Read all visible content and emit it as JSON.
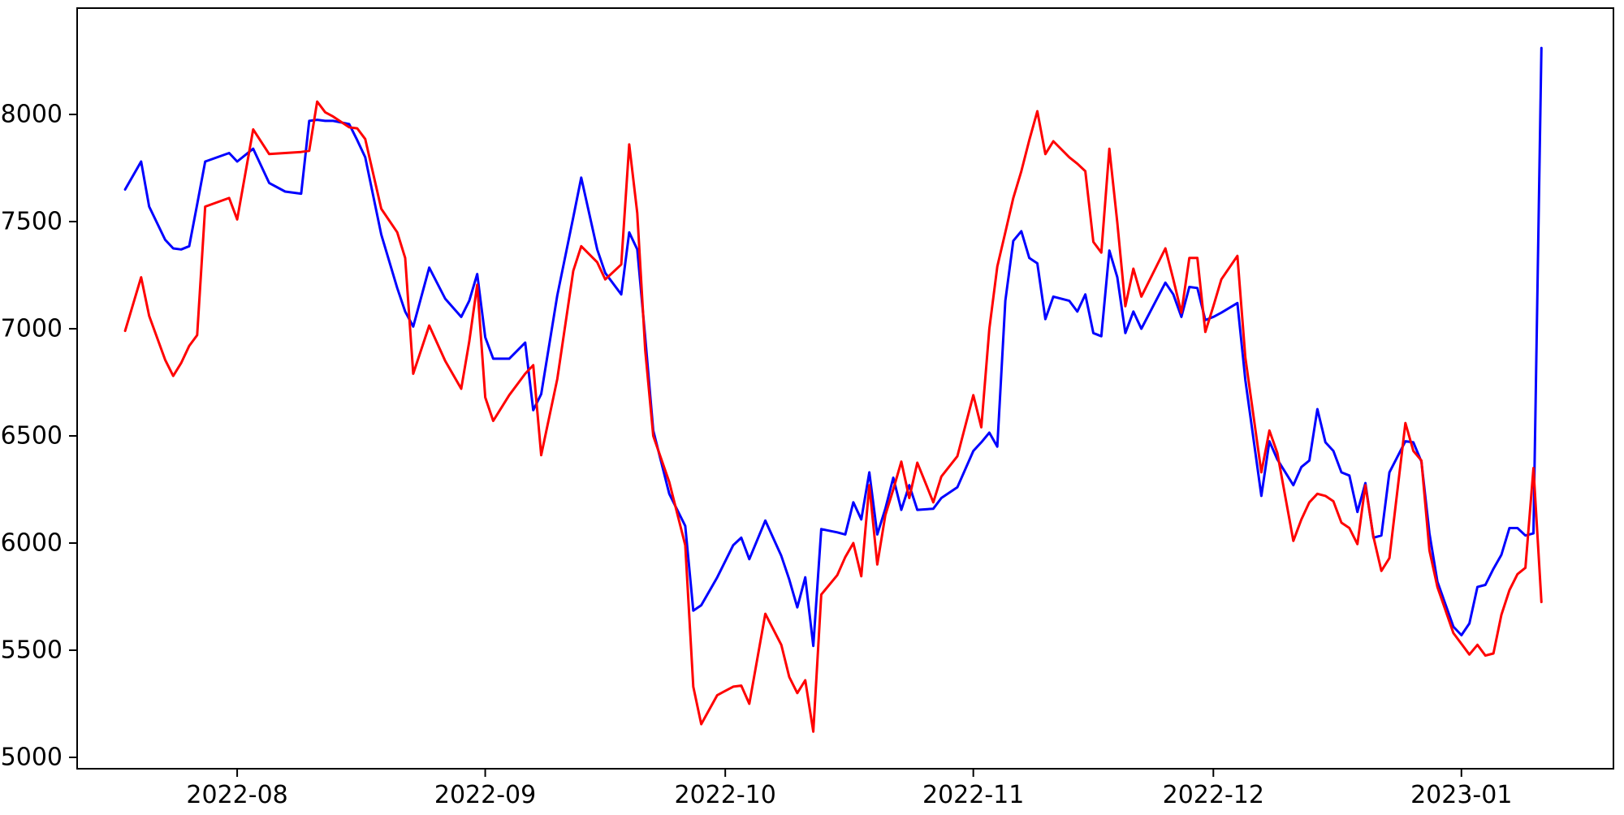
{
  "figure": {
    "background_color": "#ffffff",
    "axis_color": "#000000",
    "title": ""
  },
  "chart_data": {
    "type": "line",
    "title": "",
    "xlabel": "",
    "ylabel": "",
    "grid": false,
    "legend": null,
    "x_tick_labels": [
      "2022-08",
      "2022-09",
      "2022-10",
      "2022-11",
      "2022-12",
      "2023-01"
    ],
    "x_tick_dates": [
      "2022-08-01",
      "2022-09-01",
      "2022-10-01",
      "2022-11-01",
      "2022-12-01",
      "2023-01-01"
    ],
    "y_ticks": [
      5000,
      5500,
      6000,
      6500,
      7000,
      7500,
      8000
    ],
    "xlim": [
      "2022-07-12",
      "2023-01-20"
    ],
    "ylim": [
      4947,
      8496
    ],
    "x": [
      "2022-07-18",
      "2022-07-20",
      "2022-07-21",
      "2022-07-23",
      "2022-07-24",
      "2022-07-25",
      "2022-07-26",
      "2022-07-27",
      "2022-07-28",
      "2022-07-31",
      "2022-08-01",
      "2022-08-03",
      "2022-08-05",
      "2022-08-07",
      "2022-08-09",
      "2022-08-10",
      "2022-08-11",
      "2022-08-12",
      "2022-08-13",
      "2022-08-15",
      "2022-08-16",
      "2022-08-17",
      "2022-08-19",
      "2022-08-21",
      "2022-08-22",
      "2022-08-23",
      "2022-08-25",
      "2022-08-27",
      "2022-08-29",
      "2022-08-30",
      "2022-08-31",
      "2022-09-01",
      "2022-09-02",
      "2022-09-04",
      "2022-09-06",
      "2022-09-07",
      "2022-09-08",
      "2022-09-10",
      "2022-09-12",
      "2022-09-13",
      "2022-09-15",
      "2022-09-16",
      "2022-09-18",
      "2022-09-19",
      "2022-09-20",
      "2022-09-21",
      "2022-09-22",
      "2022-09-24",
      "2022-09-26",
      "2022-09-27",
      "2022-09-28",
      "2022-09-30",
      "2022-10-02",
      "2022-10-03",
      "2022-10-04",
      "2022-10-06",
      "2022-10-08",
      "2022-10-09",
      "2022-10-10",
      "2022-10-11",
      "2022-10-12",
      "2022-10-13",
      "2022-10-15",
      "2022-10-16",
      "2022-10-17",
      "2022-10-18",
      "2022-10-19",
      "2022-10-20",
      "2022-10-21",
      "2022-10-22",
      "2022-10-23",
      "2022-10-24",
      "2022-10-25",
      "2022-10-27",
      "2022-10-28",
      "2022-10-30",
      "2022-11-01",
      "2022-11-02",
      "2022-11-03",
      "2022-11-04",
      "2022-11-05",
      "2022-11-06",
      "2022-11-07",
      "2022-11-08",
      "2022-11-09",
      "2022-11-10",
      "2022-11-11",
      "2022-11-13",
      "2022-11-14",
      "2022-11-15",
      "2022-11-16",
      "2022-11-17",
      "2022-11-18",
      "2022-11-19",
      "2022-11-20",
      "2022-11-21",
      "2022-11-22",
      "2022-11-25",
      "2022-11-26",
      "2022-11-27",
      "2022-11-28",
      "2022-11-29",
      "2022-11-30",
      "2022-12-01",
      "2022-12-02",
      "2022-12-04",
      "2022-12-05",
      "2022-12-07",
      "2022-12-08",
      "2022-12-09",
      "2022-12-11",
      "2022-12-12",
      "2022-12-13",
      "2022-12-14",
      "2022-12-15",
      "2022-12-16",
      "2022-12-17",
      "2022-12-18",
      "2022-12-19",
      "2022-12-20",
      "2022-12-21",
      "2022-12-22",
      "2022-12-23",
      "2022-12-25",
      "2022-12-26",
      "2022-12-27",
      "2022-12-28",
      "2022-12-29",
      "2022-12-31",
      "2023-01-01",
      "2023-01-02",
      "2023-01-03",
      "2023-01-04",
      "2023-01-05",
      "2023-01-06",
      "2023-01-07",
      "2023-01-08",
      "2023-01-09",
      "2023-01-10",
      "2023-01-11"
    ],
    "series": [
      {
        "name": "blue-series",
        "color": "#0000ff",
        "values": [
          7650,
          7780,
          7570,
          7415,
          7375,
          7370,
          7385,
          7580,
          7780,
          7820,
          7780,
          7840,
          7680,
          7640,
          7630,
          7970,
          7975,
          7970,
          7970,
          7955,
          7880,
          7800,
          7440,
          7190,
          7080,
          7010,
          7285,
          7140,
          7055,
          7130,
          7255,
          6960,
          6860,
          6860,
          6935,
          6620,
          6695,
          7155,
          7520,
          7705,
          7370,
          7260,
          7160,
          7450,
          7370,
          6960,
          6525,
          6230,
          6080,
          5685,
          5710,
          5840,
          5990,
          6025,
          5925,
          6105,
          5940,
          5830,
          5700,
          5840,
          5520,
          6065,
          6050,
          6040,
          6190,
          6110,
          6330,
          6040,
          6160,
          6305,
          6155,
          6270,
          6155,
          6160,
          6210,
          6260,
          6430,
          6470,
          6515,
          6450,
          7130,
          7410,
          7455,
          7330,
          7305,
          7045,
          7150,
          7130,
          7080,
          7160,
          6980,
          6965,
          7365,
          7240,
          6980,
          7080,
          7000,
          7215,
          7160,
          7055,
          7195,
          7190,
          7040,
          7055,
          7075,
          7120,
          6760,
          6220,
          6475,
          6390,
          6270,
          6355,
          6385,
          6625,
          6470,
          6430,
          6330,
          6315,
          6145,
          6280,
          6025,
          6035,
          6330,
          6475,
          6470,
          6380,
          6045,
          5820,
          5610,
          5570,
          5625,
          5795,
          5805,
          5880,
          5945,
          6070,
          6070,
          6035,
          6045,
          8310
        ]
      },
      {
        "name": "red-series",
        "color": "#ff0000",
        "values": [
          6990,
          7240,
          7060,
          6855,
          6780,
          6840,
          6920,
          6970,
          7570,
          7610,
          7510,
          7930,
          7815,
          7820,
          7825,
          7830,
          8060,
          8010,
          7990,
          7940,
          7935,
          7885,
          7560,
          7450,
          7330,
          6790,
          7015,
          6850,
          6720,
          6940,
          7205,
          6680,
          6570,
          6690,
          6790,
          6830,
          6410,
          6765,
          7270,
          7385,
          7310,
          7230,
          7300,
          7860,
          7540,
          6900,
          6500,
          6285,
          5990,
          5330,
          5155,
          5290,
          5330,
          5335,
          5250,
          5670,
          5525,
          5375,
          5300,
          5360,
          5120,
          5760,
          5850,
          5935,
          6000,
          5845,
          6270,
          5900,
          6130,
          6250,
          6380,
          6210,
          6375,
          6190,
          6310,
          6405,
          6690,
          6540,
          7000,
          7290,
          7450,
          7610,
          7735,
          7880,
          8015,
          7815,
          7875,
          7800,
          7770,
          7735,
          7405,
          7355,
          7840,
          7495,
          7105,
          7280,
          7150,
          7375,
          7230,
          7075,
          7330,
          7330,
          6985,
          7105,
          7230,
          7340,
          6865,
          6330,
          6525,
          6420,
          6010,
          6110,
          6190,
          6230,
          6220,
          6195,
          6095,
          6070,
          5995,
          6270,
          6030,
          5870,
          5930,
          6560,
          6430,
          6385,
          5965,
          5795,
          5580,
          5530,
          5480,
          5525,
          5475,
          5485,
          5665,
          5780,
          5855,
          5885,
          6350,
          5725
        ]
      }
    ]
  }
}
